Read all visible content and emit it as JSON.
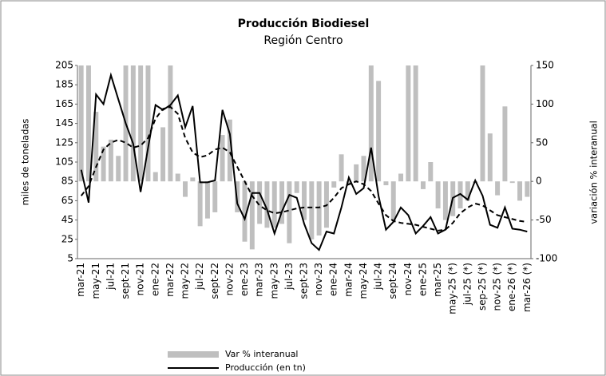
{
  "chart_data": {
    "type": "bar-line",
    "title": "Producción Biodiesel",
    "subtitle": "Región Centro",
    "ylabel": "miles de toneladas",
    "y2label": "variación % interanual",
    "categories": [
      "mar-21",
      null,
      "may-21",
      null,
      "jul-21",
      null,
      "sept-21",
      null,
      "nov-21",
      null,
      "ene-22",
      null,
      "mar-22",
      null,
      "may-22",
      null,
      "jul-22",
      null,
      "sept-22",
      null,
      "nov-22",
      null,
      "ene-23",
      null,
      "mar-23",
      null,
      "may-23",
      null,
      "jul-23",
      null,
      "sept-23",
      null,
      "nov-23",
      null,
      "ene-24",
      null,
      "mar-24",
      null,
      "may-24",
      null,
      "jul-24",
      null,
      "sept-24",
      null,
      "nov-24",
      null,
      "ene-25",
      null,
      "mar-25",
      null,
      "may-25 (*)",
      null,
      "jul-25 (*)",
      null,
      "sep-25 (*)",
      null,
      "nov-25 (*)",
      null,
      "ene-26 (*)",
      null,
      "mar-26 (*)"
    ],
    "ylim": [
      5,
      205
    ],
    "yticks": [
      5,
      25,
      45,
      65,
      85,
      105,
      125,
      145,
      165,
      185,
      205
    ],
    "y2lim": [
      -100,
      150
    ],
    "y2ticks": [
      -100,
      -50,
      0,
      50,
      100,
      150
    ],
    "legend": "bottom",
    "series": [
      {
        "name": "Var % interanual",
        "type": "bar",
        "axis": "y2",
        "color": "#bfbfbf",
        "values": [
          170,
          160,
          90,
          45,
          54,
          33,
          160,
          160,
          160,
          160,
          12,
          70,
          160,
          10,
          -20,
          5,
          -58,
          -48,
          -40,
          60,
          80,
          -40,
          -78,
          -88,
          -55,
          -60,
          -60,
          -55,
          -80,
          -15,
          -50,
          -75,
          -70,
          -60,
          -8,
          35,
          -5,
          22,
          33,
          160,
          130,
          -5,
          -50,
          10,
          160,
          160,
          -10,
          25,
          -35,
          -50,
          -45,
          -35,
          -25,
          -2,
          150,
          62,
          -18,
          97,
          -2,
          -25,
          -20
        ]
      },
      {
        "name": "Producción (en tn)",
        "type": "line",
        "color": "#000000",
        "values": [
          97,
          63,
          175,
          165,
          195,
          170,
          145,
          124,
          74,
          120,
          164,
          159,
          164,
          174,
          141,
          163,
          84,
          84,
          86,
          159,
          134,
          62,
          46,
          73,
          73,
          56,
          31,
          54,
          71,
          68,
          41,
          21,
          14,
          33,
          31,
          58,
          89,
          72,
          78,
          120,
          70,
          35,
          43,
          58,
          50,
          31,
          39,
          48,
          31,
          35,
          68,
          72,
          66,
          86,
          70,
          40,
          37,
          58,
          36,
          35,
          33
        ]
      },
      {
        "type": "line",
        "dashed": true,
        "color": "#000000",
        "values": [
          70,
          80,
          100,
          118,
          125,
          128,
          125,
          120,
          122,
          130,
          150,
          160,
          162,
          155,
          130,
          115,
          110,
          112,
          118,
          120,
          115,
          100,
          85,
          70,
          60,
          55,
          52,
          53,
          55,
          57,
          58,
          58,
          58,
          60,
          68,
          78,
          82,
          85,
          82,
          75,
          62,
          50,
          44,
          42,
          41,
          40,
          38,
          36,
          34,
          35,
          42,
          52,
          58,
          62,
          60,
          55,
          50,
          48,
          46,
          44,
          43
        ]
      }
    ]
  }
}
